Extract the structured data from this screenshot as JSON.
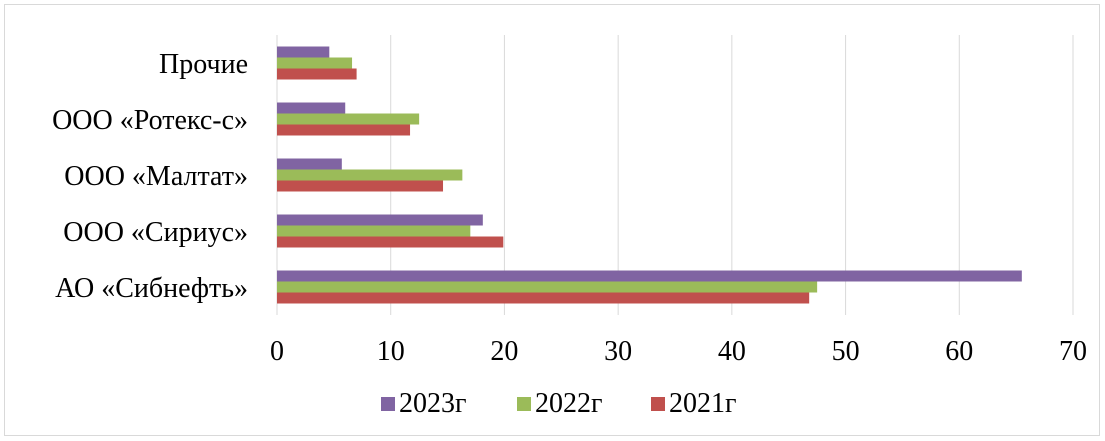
{
  "chart_data": {
    "type": "bar",
    "orientation": "horizontal",
    "categories": [
      "Прочие",
      "ООО «Ротекс-с»",
      "ООО «Малтат»",
      "ООО «Сириус»",
      "АО «Сибнефть»"
    ],
    "series": [
      {
        "name": "2023г",
        "color": "#8064a2",
        "values": [
          4.6,
          6.0,
          5.7,
          18.1,
          65.5
        ]
      },
      {
        "name": "2022г",
        "color": "#9bbb59",
        "values": [
          6.6,
          12.5,
          16.3,
          17.0,
          47.5
        ]
      },
      {
        "name": "2021г",
        "color": "#c0504d",
        "values": [
          7.0,
          11.7,
          14.6,
          19.9,
          46.8
        ]
      }
    ],
    "xlim": [
      0,
      70
    ],
    "xticks": [
      "0",
      "10",
      "20",
      "30",
      "40",
      "50",
      "60",
      "70"
    ],
    "grid": true,
    "legend_position": "bottom"
  }
}
